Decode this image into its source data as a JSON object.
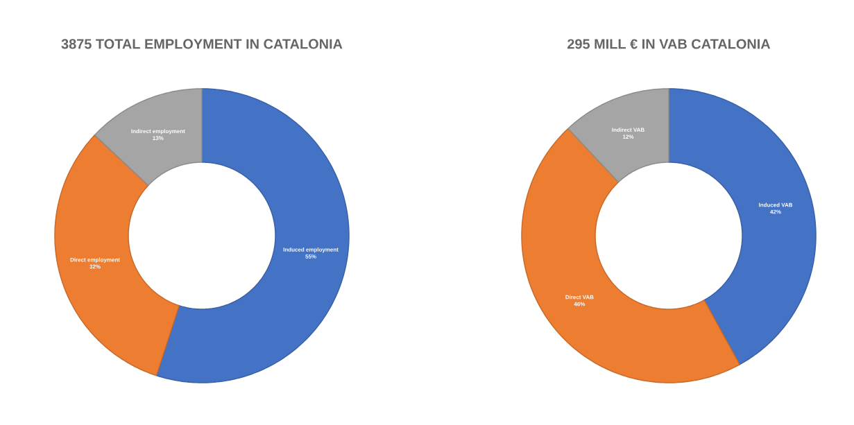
{
  "chart_data": [
    {
      "type": "donut",
      "title": "3875 TOTAL EMPLOYMENT IN CATALONIA",
      "categories": [
        "Induced employment",
        "Direct employment",
        "Indirect employment"
      ],
      "values": [
        55,
        32,
        13
      ],
      "value_labels": [
        "55%",
        "32%",
        "13%"
      ],
      "colors": [
        "#4472c4",
        "#ed7d31",
        "#a5a5a5"
      ]
    },
    {
      "type": "donut",
      "title": "295 MILL € IN VAB CATALONIA",
      "categories": [
        "Induced VAB",
        "Direct VAB",
        "Indirect VAB"
      ],
      "values": [
        42,
        46,
        12
      ],
      "value_labels": [
        "42%",
        "46%",
        "12%"
      ],
      "colors": [
        "#4472c4",
        "#ed7d31",
        "#a5a5a5"
      ]
    }
  ]
}
